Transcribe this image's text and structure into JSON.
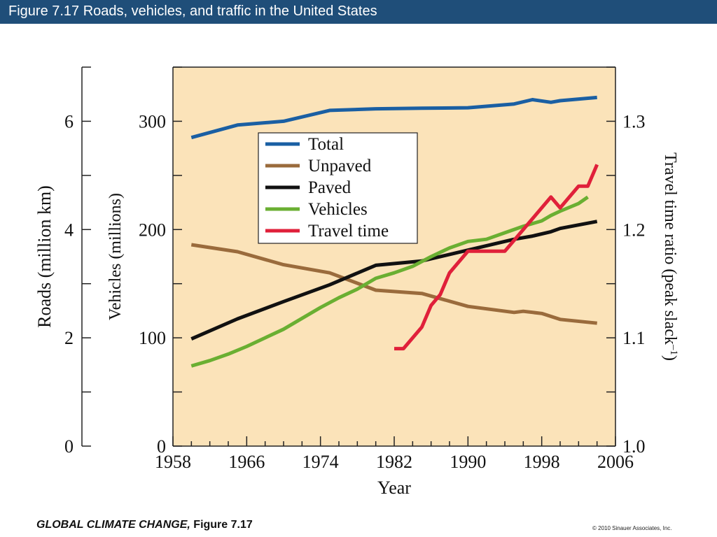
{
  "header": {
    "title": "Figure 7.17  Roads, vehicles, and traffic in the United States"
  },
  "footer": {
    "book_title": "GLOBAL CLIMATE CHANGE,",
    "figure_ref": " Figure 7.17",
    "copyright": "© 2010 Sinauer Associates, Inc."
  },
  "colors": {
    "plot_bg": "#fbe3b9",
    "title_bar": "#1f4e79",
    "total": "#1a5fa3",
    "unpaved": "#9a6b3c",
    "paved": "#111111",
    "vehicles": "#6aaf32",
    "travel_time": "#e0203a"
  },
  "chart_data": {
    "type": "line",
    "xlabel": "Year",
    "ylabel_roads": "Roads (million km)",
    "ylabel_vehicles": "Vehicles (millions)",
    "ylabel_right": "Travel time ratio (peak slack",
    "ylabel_right_sup": "–1",
    "ylabel_right_close": ")",
    "xlim": [
      1958,
      2006
    ],
    "x_ticks": [
      "1958",
      "1966",
      "1974",
      "1982",
      "1990",
      "1998",
      "2006"
    ],
    "roads_ylim": [
      0,
      7
    ],
    "roads_ticks": [
      "0",
      "2",
      "4",
      "6"
    ],
    "vehicles_ylim": [
      0,
      350
    ],
    "vehicles_ticks": [
      "0",
      "100",
      "200",
      "300"
    ],
    "right_ylim": [
      1.0,
      1.35
    ],
    "right_ticks": [
      "1.0",
      "1.1",
      "1.2",
      "1.3"
    ],
    "legend_position": "upper-left-inside",
    "series": [
      {
        "name": "Total",
        "axis": "roads",
        "color_key": "total",
        "x": [
          1960,
          1965,
          1970,
          1975,
          1980,
          1985,
          1990,
          1995,
          1997,
          1999,
          2000,
          2004
        ],
        "y": [
          5.7,
          5.93,
          6.0,
          6.2,
          6.23,
          6.24,
          6.25,
          6.32,
          6.4,
          6.35,
          6.38,
          6.44
        ]
      },
      {
        "name": "Unpaved",
        "axis": "roads",
        "color_key": "unpaved",
        "x": [
          1960,
          1965,
          1970,
          1975,
          1980,
          1985,
          1990,
          1995,
          1996,
          1998,
          2000,
          2004
        ],
        "y": [
          3.72,
          3.59,
          3.35,
          3.2,
          2.88,
          2.82,
          2.58,
          2.47,
          2.49,
          2.45,
          2.34,
          2.27
        ]
      },
      {
        "name": "Paved",
        "axis": "roads",
        "color_key": "paved",
        "x": [
          1960,
          1965,
          1970,
          1975,
          1980,
          1985,
          1990,
          1995,
          1997,
          1999,
          2000,
          2004
        ],
        "y": [
          1.98,
          2.35,
          2.67,
          2.98,
          3.34,
          3.42,
          3.62,
          3.82,
          3.88,
          3.96,
          4.02,
          4.15
        ]
      },
      {
        "name": "Vehicles",
        "axis": "vehicles",
        "color_key": "vehicles",
        "x": [
          1960,
          1962,
          1964,
          1966,
          1968,
          1970,
          1972,
          1974,
          1976,
          1978,
          1980,
          1982,
          1984,
          1986,
          1988,
          1990,
          1992,
          1994,
          1996,
          1998,
          1999,
          2000,
          2002,
          2003
        ],
        "y": [
          74,
          79,
          85,
          92,
          100,
          108,
          118,
          128,
          137,
          145,
          155,
          160,
          166,
          175,
          183,
          189,
          191,
          197,
          203,
          208,
          213,
          217,
          224,
          230
        ]
      },
      {
        "name": "Travel time",
        "axis": "right",
        "color_key": "travel_time",
        "x": [
          1982,
          1983,
          1985,
          1986,
          1987,
          1988,
          1990,
          1992,
          1994,
          1995,
          1997,
          1999,
          2000,
          2002,
          2003,
          2004
        ],
        "y": [
          1.09,
          1.09,
          1.11,
          1.13,
          1.14,
          1.16,
          1.18,
          1.18,
          1.18,
          1.19,
          1.21,
          1.23,
          1.22,
          1.24,
          1.24,
          1.26
        ]
      }
    ]
  }
}
